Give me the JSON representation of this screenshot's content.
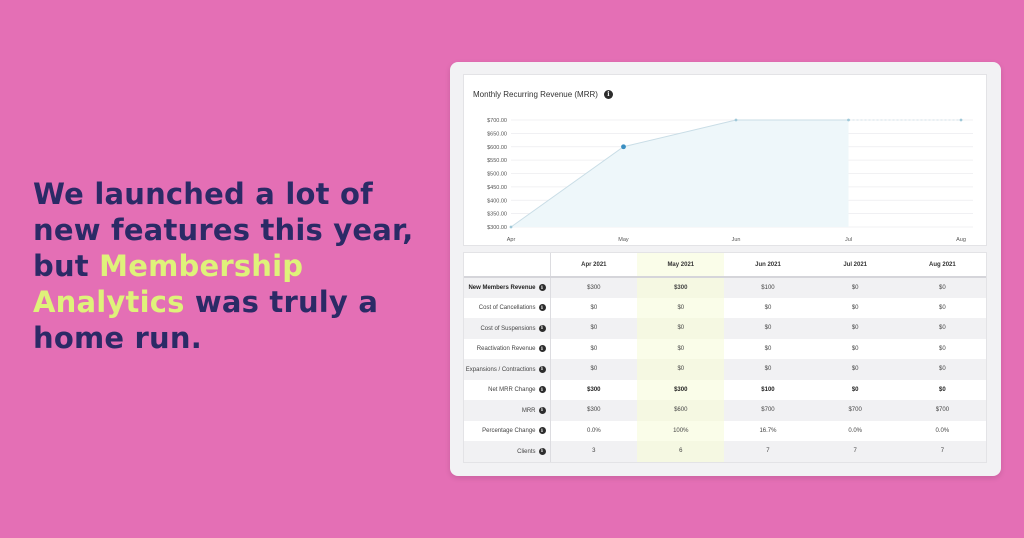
{
  "headline": {
    "part1": "We launched a lot of new features this year, but ",
    "highlight": "Membership Analytics",
    "part2": " was truly a home run."
  },
  "colors": {
    "background": "#e46fb5",
    "headline_text": "#2b2a66",
    "highlight_text": "#dff27a",
    "line": "#c9dde6",
    "area_fill": "#eef7fa",
    "point_active": "#3a8fc2",
    "point": "#9fc8d8"
  },
  "chart": {
    "title": "Monthly Recurring Revenue (MRR)",
    "info_icon": "info-icon"
  },
  "chart_data": {
    "type": "area",
    "title": "Monthly Recurring Revenue (MRR)",
    "x": [
      "Apr",
      "May",
      "Jun",
      "Jul",
      "Aug"
    ],
    "series": [
      {
        "values": [
          300,
          600,
          700,
          700,
          700
        ]
      }
    ],
    "y_ticks": [
      "$300.00",
      "$350.00",
      "$400.00",
      "$450.00",
      "$500.00",
      "$550.00",
      "$600.00",
      "$650.00",
      "$700.00"
    ],
    "ylim": [
      300,
      700
    ],
    "grid": true,
    "projected_from_index": 3
  },
  "table": {
    "headers": [
      "",
      "Apr 2021",
      "May 2021",
      "Jun 2021",
      "Jul 2021",
      "Aug 2021"
    ],
    "highlight_column": 2,
    "rows": [
      {
        "label": "New Members Revenue",
        "values": [
          "$300",
          "$300",
          "$100",
          "$0",
          "$0"
        ],
        "bold_label": true,
        "bold_highlight": true
      },
      {
        "label": "Cost of Cancellations",
        "values": [
          "$0",
          "$0",
          "$0",
          "$0",
          "$0"
        ]
      },
      {
        "label": "Cost of Suspensions",
        "values": [
          "$0",
          "$0",
          "$0",
          "$0",
          "$0"
        ]
      },
      {
        "label": "Reactivation Revenue",
        "values": [
          "$0",
          "$0",
          "$0",
          "$0",
          "$0"
        ]
      },
      {
        "label": "Expansions / Contractions",
        "values": [
          "$0",
          "$0",
          "$0",
          "$0",
          "$0"
        ]
      },
      {
        "label": "Net MRR Change",
        "values": [
          "$300",
          "$300",
          "$100",
          "$0",
          "$0"
        ],
        "bold_values": true
      },
      {
        "label": "MRR",
        "values": [
          "$300",
          "$600",
          "$700",
          "$700",
          "$700"
        ]
      },
      {
        "label": "Percentage Change",
        "values": [
          "0.0%",
          "100%",
          "16.7%",
          "0.0%",
          "0.0%"
        ]
      },
      {
        "label": "Clients",
        "values": [
          "3",
          "6",
          "7",
          "7",
          "7"
        ]
      }
    ]
  }
}
